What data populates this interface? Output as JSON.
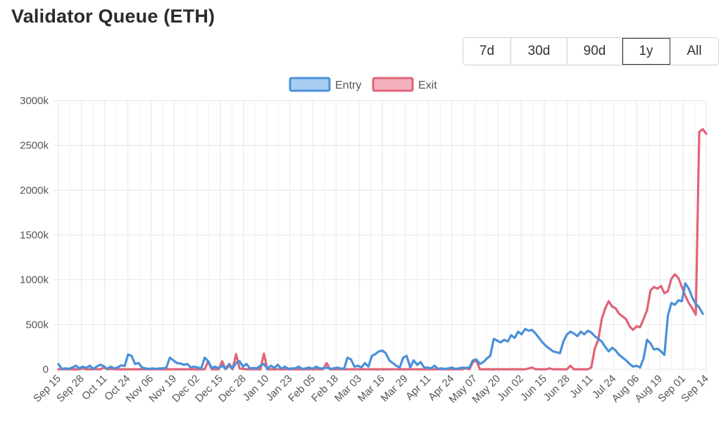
{
  "page": {
    "title": "Validator Queue (ETH)"
  },
  "range_buttons": [
    {
      "label": "7d",
      "active": false
    },
    {
      "label": "30d",
      "active": false
    },
    {
      "label": "90d",
      "active": false
    },
    {
      "label": "1y",
      "active": true
    },
    {
      "label": "All",
      "active": false
    }
  ],
  "colors": {
    "entry": "#4a90d9",
    "exit": "#e06377",
    "grid": "#e6e6e6"
  },
  "chart_data": {
    "type": "line",
    "title": "",
    "xlabel": "",
    "ylabel": "",
    "ylim": [
      0,
      3000
    ],
    "y_ticks": [
      "0",
      "500k",
      "1000k",
      "1500k",
      "2000k",
      "2500k",
      "3000k"
    ],
    "legend_position": "top-center",
    "grid": true,
    "x_ticks": [
      "Sep 15",
      "Sep 28",
      "Oct 11",
      "Oct 24",
      "Nov 06",
      "Nov 19",
      "Dec 02",
      "Dec 15",
      "Dec 28",
      "Jan 10",
      "Jan 23",
      "Feb 05",
      "Feb 18",
      "Mar 03",
      "Mar 16",
      "Mar 29",
      "Apr 11",
      "Apr 24",
      "May 07",
      "May 20",
      "Jun 02",
      "Jun 15",
      "Jun 28",
      "Jul 11",
      "Jul 24",
      "Aug 06",
      "Aug 19",
      "Sep 01",
      "Sep 14"
    ],
    "unit_note": "values in thousands ETH (k)",
    "series": [
      {
        "name": "Entry",
        "points": [
          [
            0,
            60
          ],
          [
            0.5,
            5
          ],
          [
            1,
            10
          ],
          [
            1.5,
            5
          ],
          [
            2,
            20
          ],
          [
            2.5,
            40
          ],
          [
            3,
            10
          ],
          [
            3.5,
            30
          ],
          [
            4,
            15
          ],
          [
            4.5,
            40
          ],
          [
            5,
            5
          ],
          [
            5.5,
            30
          ],
          [
            6,
            50
          ],
          [
            6.5,
            35
          ],
          [
            7,
            5
          ],
          [
            7.5,
            30
          ],
          [
            8,
            10
          ],
          [
            8.5,
            20
          ],
          [
            9,
            45
          ],
          [
            9.5,
            35
          ],
          [
            10,
            165
          ],
          [
            10.5,
            150
          ],
          [
            11,
            60
          ],
          [
            11.5,
            70
          ],
          [
            12,
            20
          ],
          [
            12.5,
            10
          ],
          [
            13,
            5
          ],
          [
            13.5,
            10
          ],
          [
            14,
            5
          ],
          [
            14.5,
            10
          ],
          [
            15,
            10
          ],
          [
            15.5,
            20
          ],
          [
            16,
            130
          ],
          [
            16.5,
            100
          ],
          [
            17,
            70
          ],
          [
            17.5,
            65
          ],
          [
            18,
            50
          ],
          [
            18.5,
            60
          ],
          [
            19,
            20
          ],
          [
            19.5,
            30
          ],
          [
            20,
            20
          ],
          [
            20.5,
            10
          ],
          [
            21,
            130
          ],
          [
            21.5,
            90
          ],
          [
            22,
            15
          ],
          [
            22.5,
            30
          ],
          [
            23,
            10
          ],
          [
            23.5,
            40
          ],
          [
            24,
            5
          ],
          [
            24.5,
            60
          ],
          [
            25,
            10
          ],
          [
            25.5,
            70
          ],
          [
            26,
            90
          ],
          [
            26.5,
            30
          ],
          [
            27,
            60
          ],
          [
            27.5,
            10
          ],
          [
            28,
            15
          ],
          [
            28.5,
            10
          ],
          [
            29,
            40
          ],
          [
            29.5,
            60
          ],
          [
            30,
            5
          ],
          [
            30.5,
            40
          ],
          [
            31,
            15
          ],
          [
            31.5,
            50
          ],
          [
            32,
            5
          ],
          [
            32.5,
            30
          ],
          [
            33,
            5
          ],
          [
            33.5,
            10
          ],
          [
            34,
            10
          ],
          [
            34.5,
            30
          ],
          [
            35,
            5
          ],
          [
            35.5,
            10
          ],
          [
            36,
            20
          ],
          [
            36.5,
            5
          ],
          [
            37,
            30
          ],
          [
            37.5,
            10
          ],
          [
            38,
            10
          ],
          [
            38.5,
            20
          ],
          [
            39,
            5
          ],
          [
            39.5,
            10
          ],
          [
            40,
            20
          ],
          [
            40.5,
            10
          ],
          [
            41,
            5
          ],
          [
            41.5,
            130
          ],
          [
            42,
            110
          ],
          [
            42.5,
            30
          ],
          [
            43,
            40
          ],
          [
            43.5,
            20
          ],
          [
            44,
            70
          ],
          [
            44.5,
            30
          ],
          [
            45,
            150
          ],
          [
            45.5,
            170
          ],
          [
            46,
            200
          ],
          [
            46.5,
            210
          ],
          [
            47,
            180
          ],
          [
            47.5,
            100
          ],
          [
            48,
            70
          ],
          [
            48.5,
            40
          ],
          [
            49,
            20
          ],
          [
            49.5,
            130
          ],
          [
            50,
            150
          ],
          [
            50.5,
            20
          ],
          [
            51,
            100
          ],
          [
            51.5,
            50
          ],
          [
            52,
            80
          ],
          [
            52.5,
            20
          ],
          [
            53,
            20
          ],
          [
            53.5,
            10
          ],
          [
            54,
            40
          ],
          [
            54.5,
            5
          ],
          [
            55,
            10
          ],
          [
            55.5,
            5
          ],
          [
            56,
            10
          ],
          [
            56.5,
            20
          ],
          [
            57,
            5
          ],
          [
            57.5,
            10
          ],
          [
            58,
            20
          ],
          [
            58.5,
            15
          ],
          [
            59,
            20
          ],
          [
            59.5,
            100
          ],
          [
            60,
            110
          ],
          [
            60.5,
            60
          ],
          [
            61,
            80
          ],
          [
            61.5,
            120
          ],
          [
            62,
            150
          ],
          [
            62.5,
            340
          ],
          [
            63,
            320
          ],
          [
            63.5,
            300
          ],
          [
            64,
            330
          ],
          [
            64.5,
            310
          ],
          [
            65,
            380
          ],
          [
            65.5,
            350
          ],
          [
            66,
            420
          ],
          [
            66.5,
            390
          ],
          [
            67,
            450
          ],
          [
            67.5,
            430
          ],
          [
            68,
            440
          ],
          [
            68.5,
            400
          ],
          [
            69,
            350
          ],
          [
            69.5,
            300
          ],
          [
            70,
            260
          ],
          [
            70.5,
            230
          ],
          [
            71,
            200
          ],
          [
            71.5,
            190
          ],
          [
            72,
            180
          ],
          [
            72.5,
            310
          ],
          [
            73,
            390
          ],
          [
            73.5,
            420
          ],
          [
            74,
            400
          ],
          [
            74.5,
            370
          ],
          [
            75,
            420
          ],
          [
            75.5,
            390
          ],
          [
            76,
            430
          ],
          [
            76.5,
            410
          ],
          [
            77,
            370
          ],
          [
            77.5,
            340
          ],
          [
            78,
            310
          ],
          [
            78.5,
            250
          ],
          [
            79,
            200
          ],
          [
            79.5,
            240
          ],
          [
            80,
            210
          ],
          [
            80.5,
            160
          ],
          [
            81,
            130
          ],
          [
            81.5,
            100
          ],
          [
            82,
            60
          ],
          [
            82.5,
            30
          ],
          [
            83,
            40
          ],
          [
            83.5,
            20
          ],
          [
            84,
            120
          ],
          [
            84.5,
            330
          ],
          [
            85,
            290
          ],
          [
            85.5,
            220
          ],
          [
            86,
            230
          ],
          [
            86.5,
            200
          ],
          [
            87,
            160
          ],
          [
            87.5,
            600
          ],
          [
            88,
            740
          ],
          [
            88.5,
            720
          ],
          [
            89,
            770
          ],
          [
            89.5,
            760
          ],
          [
            90,
            960
          ],
          [
            90.5,
            900
          ],
          [
            91,
            800
          ],
          [
            91.5,
            730
          ],
          [
            92,
            690
          ],
          [
            92.5,
            620
          ]
        ]
      },
      {
        "name": "Exit",
        "points": [
          [
            0,
            0
          ],
          [
            1,
            0
          ],
          [
            2,
            0
          ],
          [
            3,
            0
          ],
          [
            3.5,
            10
          ],
          [
            4,
            0
          ],
          [
            5,
            0
          ],
          [
            6,
            0
          ],
          [
            6.5,
            20
          ],
          [
            7,
            0
          ],
          [
            7.5,
            5
          ],
          [
            8,
            0
          ],
          [
            9,
            0
          ],
          [
            10,
            0
          ],
          [
            11,
            0
          ],
          [
            12,
            0
          ],
          [
            13,
            0
          ],
          [
            14,
            0
          ],
          [
            15,
            0
          ],
          [
            16,
            0
          ],
          [
            17,
            0
          ],
          [
            18,
            0
          ],
          [
            19,
            0
          ],
          [
            20,
            0
          ],
          [
            21,
            0
          ],
          [
            21.5,
            90
          ],
          [
            22,
            0
          ],
          [
            23,
            0
          ],
          [
            23.5,
            90
          ],
          [
            24,
            0
          ],
          [
            24.5,
            40
          ],
          [
            25,
            0
          ],
          [
            25.5,
            170
          ],
          [
            26,
            10
          ],
          [
            27,
            0
          ],
          [
            28,
            0
          ],
          [
            29,
            0
          ],
          [
            29.5,
            175
          ],
          [
            30,
            0
          ],
          [
            31,
            0
          ],
          [
            32,
            0
          ],
          [
            33,
            0
          ],
          [
            34,
            0
          ],
          [
            35,
            0
          ],
          [
            36,
            0
          ],
          [
            37,
            0
          ],
          [
            38,
            0
          ],
          [
            38.5,
            70
          ],
          [
            39,
            0
          ],
          [
            40,
            0
          ],
          [
            41,
            0
          ],
          [
            42,
            0
          ],
          [
            43,
            0
          ],
          [
            44,
            0
          ],
          [
            45,
            0
          ],
          [
            46,
            0
          ],
          [
            47,
            0
          ],
          [
            48,
            0
          ],
          [
            49,
            0
          ],
          [
            50,
            0
          ],
          [
            51,
            0
          ],
          [
            52,
            0
          ],
          [
            53,
            0
          ],
          [
            54,
            0
          ],
          [
            55,
            0
          ],
          [
            56,
            0
          ],
          [
            57,
            0
          ],
          [
            58,
            0
          ],
          [
            58.5,
            10
          ],
          [
            59,
            0
          ],
          [
            59.5,
            80
          ],
          [
            60,
            100
          ],
          [
            60.5,
            0
          ],
          [
            61,
            0
          ],
          [
            62,
            0
          ],
          [
            63,
            0
          ],
          [
            64,
            0
          ],
          [
            65,
            0
          ],
          [
            66,
            0
          ],
          [
            67,
            0
          ],
          [
            68,
            20
          ],
          [
            68.5,
            0
          ],
          [
            69,
            0
          ],
          [
            70,
            0
          ],
          [
            70.5,
            10
          ],
          [
            71,
            0
          ],
          [
            72,
            0
          ],
          [
            73,
            0
          ],
          [
            73.5,
            40
          ],
          [
            74,
            0
          ],
          [
            75,
            0
          ],
          [
            76,
            0
          ],
          [
            76.5,
            20
          ],
          [
            77,
            230
          ],
          [
            77.5,
            330
          ],
          [
            78,
            560
          ],
          [
            78.5,
            680
          ],
          [
            79,
            760
          ],
          [
            79.5,
            700
          ],
          [
            80,
            680
          ],
          [
            80.5,
            620
          ],
          [
            81,
            590
          ],
          [
            81.5,
            560
          ],
          [
            82,
            480
          ],
          [
            82.5,
            440
          ],
          [
            83,
            480
          ],
          [
            83.5,
            470
          ],
          [
            84,
            560
          ],
          [
            84.5,
            660
          ],
          [
            85,
            880
          ],
          [
            85.5,
            920
          ],
          [
            86,
            900
          ],
          [
            86.5,
            930
          ],
          [
            87,
            850
          ],
          [
            87.5,
            870
          ],
          [
            88,
            1010
          ],
          [
            88.5,
            1060
          ],
          [
            89,
            1020
          ],
          [
            89.5,
            920
          ],
          [
            90,
            820
          ],
          [
            90.5,
            740
          ],
          [
            91,
            680
          ],
          [
            91.5,
            610
          ],
          [
            92,
            2650
          ],
          [
            92.5,
            2680
          ],
          [
            93,
            2630
          ]
        ]
      }
    ]
  }
}
